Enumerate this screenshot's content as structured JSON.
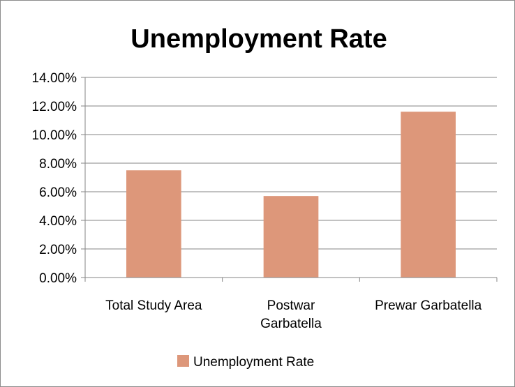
{
  "chart_data": {
    "type": "bar",
    "title": "Unemployment Rate",
    "categories": [
      "Total Study Area",
      "Postwar Garbatella",
      "Prewar Garbatella"
    ],
    "category_lines": [
      [
        "Total Study Area"
      ],
      [
        "Postwar",
        "Garbatella"
      ],
      [
        "Prewar Garbatella"
      ]
    ],
    "series": [
      {
        "name": "Unemployment Rate",
        "values": [
          7.5,
          5.7,
          11.6
        ]
      }
    ],
    "ylim": [
      0,
      14
    ],
    "yticks": [
      "0.00%",
      "2.00%",
      "4.00%",
      "6.00%",
      "8.00%",
      "10.00%",
      "12.00%",
      "14.00%"
    ],
    "grid": true,
    "legend": "bottom",
    "colors": {
      "bar": "#DD977A",
      "grid": "#868686",
      "axis": "#868686"
    }
  }
}
